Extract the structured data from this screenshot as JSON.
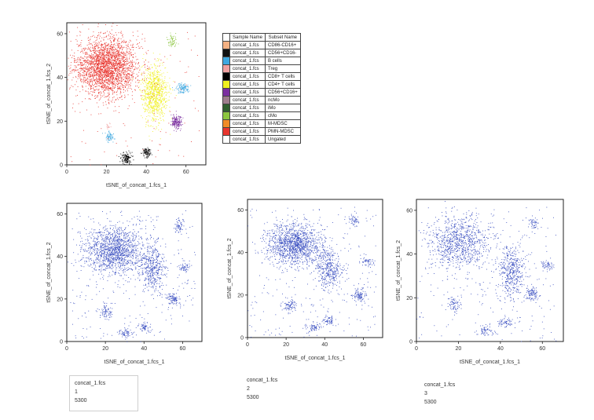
{
  "legend": {
    "headers": [
      "",
      "Sample Name",
      "Subset Name"
    ],
    "rows": [
      {
        "color": "#f4b183",
        "sample": "concat_1.fcs",
        "subset": "CD86-CD16+"
      },
      {
        "color": "#111111",
        "sample": "concat_1.fcs",
        "subset": "CD56+CD16-"
      },
      {
        "color": "#3fa8e0",
        "sample": "concat_1.fcs",
        "subset": "B cells"
      },
      {
        "color": "#f0a0a0",
        "sample": "concat_1.fcs",
        "subset": "Treg"
      },
      {
        "color": "#000000",
        "sample": "concat_1.fcs",
        "subset": "CD8+ T cells"
      },
      {
        "color": "#f0f020",
        "sample": "concat_1.fcs",
        "subset": "CD4+ T cells"
      },
      {
        "color": "#7b2fa0",
        "sample": "concat_1.fcs",
        "subset": "CD56+CD16+"
      },
      {
        "color": "#9e7e8e",
        "sample": "concat_1.fcs",
        "subset": "ncMo"
      },
      {
        "color": "#2f5f2f",
        "sample": "concat_1.fcs",
        "subset": "iMo"
      },
      {
        "color": "#8cc63f",
        "sample": "concat_1.fcs",
        "subset": "cMo"
      },
      {
        "color": "#f08c28",
        "sample": "concat_1.fcs",
        "subset": "M-MDSC"
      },
      {
        "color": "#e8352e",
        "sample": "concat_1.fcs",
        "subset": "PMN-MDSC"
      },
      {
        "color": "#ffffff",
        "sample": "concat_1.fcs",
        "subset": "Ungated"
      }
    ]
  },
  "info_boxes": [
    {
      "sample": "concat_1.fcs",
      "index": "1",
      "count": "5300"
    },
    {
      "sample": "concat_1.fcs",
      "index": "2",
      "count": "5300"
    },
    {
      "sample": "concat_1.fcs",
      "index": "3",
      "count": "5300"
    }
  ],
  "chart_data": [
    {
      "type": "scatter",
      "title": "",
      "xlabel": "tSNE_of_concat_1.fcs_1",
      "ylabel": "tSNE_of_concat_1.fcs_2",
      "xlim": [
        0,
        70
      ],
      "ylim": [
        0,
        65
      ],
      "xticks": [
        0,
        20,
        40,
        60
      ],
      "yticks": [
        0,
        20,
        40,
        60
      ],
      "grid": false,
      "series": [
        {
          "name": "PMN-MDSC",
          "color": "#e8352e",
          "cx": 20,
          "cy": 45,
          "rx": 14,
          "ry": 12,
          "n": 2600
        },
        {
          "name": "CD4+ T cells",
          "color": "#f0f020",
          "cx": 44,
          "cy": 33,
          "rx": 6,
          "ry": 11,
          "n": 900
        },
        {
          "name": "cMo",
          "color": "#8cc63f",
          "cx": 53,
          "cy": 57,
          "rx": 2,
          "ry": 3,
          "n": 60
        },
        {
          "name": "B cells",
          "color": "#3fa8e0",
          "cx": 58,
          "cy": 35,
          "rx": 3,
          "ry": 2,
          "n": 120
        },
        {
          "name": "CD56+CD16+",
          "color": "#7b2fa0",
          "cx": 55,
          "cy": 20,
          "rx": 2.5,
          "ry": 3,
          "n": 180
        },
        {
          "name": "B cells",
          "color": "#3fa8e0",
          "cx": 21,
          "cy": 13,
          "rx": 2,
          "ry": 2,
          "n": 70
        },
        {
          "name": "Treg",
          "color": "#f0a0a0",
          "cx": 21,
          "cy": 18,
          "rx": 1,
          "ry": 1,
          "n": 15
        },
        {
          "name": "CD8+ T cells",
          "color": "#000000",
          "cx": 30,
          "cy": 3,
          "rx": 2.5,
          "ry": 2.5,
          "n": 140
        },
        {
          "name": "CD56+CD16-",
          "color": "#111111",
          "cx": 40,
          "cy": 6,
          "rx": 2,
          "ry": 2,
          "n": 110
        }
      ]
    },
    {
      "type": "scatter",
      "title": "",
      "xlabel": "tSNE_of_concat_1.fcs_1",
      "ylabel": "tSNE_of_concat_1.fcs_2",
      "xlim": [
        0,
        70
      ],
      "ylim": [
        0,
        65
      ],
      "xticks": [
        0,
        20,
        40,
        60
      ],
      "yticks": [
        0,
        20,
        40,
        60
      ],
      "grid": false,
      "series": [
        {
          "name": "1",
          "color": "#3a4fc0",
          "cx": 24,
          "cy": 43,
          "rx": 14,
          "ry": 10,
          "n": 1400
        },
        {
          "name": "1",
          "color": "#3a4fc0",
          "cx": 44,
          "cy": 35,
          "rx": 6,
          "ry": 10,
          "n": 450
        },
        {
          "name": "1",
          "color": "#3a4fc0",
          "cx": 58,
          "cy": 55,
          "rx": 2,
          "ry": 3,
          "n": 60
        },
        {
          "name": "1",
          "color": "#3a4fc0",
          "cx": 61,
          "cy": 35,
          "rx": 3,
          "ry": 2,
          "n": 50
        },
        {
          "name": "1",
          "color": "#3a4fc0",
          "cx": 55,
          "cy": 20,
          "rx": 3,
          "ry": 3,
          "n": 100
        },
        {
          "name": "1",
          "color": "#3a4fc0",
          "cx": 20,
          "cy": 14,
          "rx": 3,
          "ry": 3,
          "n": 80
        },
        {
          "name": "1",
          "color": "#3a4fc0",
          "cx": 30,
          "cy": 4,
          "rx": 3,
          "ry": 2,
          "n": 60
        },
        {
          "name": "1",
          "color": "#3a4fc0",
          "cx": 40,
          "cy": 7,
          "rx": 3,
          "ry": 2,
          "n": 60
        }
      ]
    },
    {
      "type": "scatter",
      "title": "",
      "xlabel": "tSNE_of_concat_1.fcs_1",
      "ylabel": "tSNE_of_concat_1.fcs_2",
      "xlim": [
        0,
        70
      ],
      "ylim": [
        0,
        65
      ],
      "xticks": [
        0,
        20,
        40,
        60
      ],
      "yticks": [
        0,
        20,
        40,
        60
      ],
      "grid": false,
      "series": [
        {
          "name": "2",
          "color": "#3a4fc0",
          "cx": 24,
          "cy": 44,
          "rx": 13,
          "ry": 9,
          "n": 1300
        },
        {
          "name": "2",
          "color": "#3a4fc0",
          "cx": 42,
          "cy": 32,
          "rx": 6,
          "ry": 9,
          "n": 400
        },
        {
          "name": "2",
          "color": "#3a4fc0",
          "cx": 55,
          "cy": 55,
          "rx": 2,
          "ry": 3,
          "n": 50
        },
        {
          "name": "2",
          "color": "#3a4fc0",
          "cx": 62,
          "cy": 36,
          "rx": 3,
          "ry": 2,
          "n": 50
        },
        {
          "name": "2",
          "color": "#3a4fc0",
          "cx": 58,
          "cy": 20,
          "rx": 3,
          "ry": 3,
          "n": 100
        },
        {
          "name": "2",
          "color": "#3a4fc0",
          "cx": 22,
          "cy": 15,
          "rx": 3,
          "ry": 3,
          "n": 80
        },
        {
          "name": "2",
          "color": "#3a4fc0",
          "cx": 34,
          "cy": 5,
          "rx": 3,
          "ry": 2,
          "n": 60
        },
        {
          "name": "2",
          "color": "#3a4fc0",
          "cx": 42,
          "cy": 8,
          "rx": 3,
          "ry": 2,
          "n": 60
        }
      ]
    },
    {
      "type": "scatter",
      "title": "",
      "xlabel": "tSNE_of_concat_1.fcs_1",
      "ylabel": "tSNE_of_concat_1.fcs_2",
      "xlim": [
        0,
        70
      ],
      "ylim": [
        0,
        65
      ],
      "xticks": [
        0,
        20,
        40,
        60
      ],
      "yticks": [
        0,
        20,
        40,
        60
      ],
      "grid": false,
      "series": [
        {
          "name": "3",
          "color": "#3a4fc0",
          "cx": 20,
          "cy": 45,
          "rx": 13,
          "ry": 11,
          "n": 900
        },
        {
          "name": "3",
          "color": "#3a4fc0",
          "cx": 45,
          "cy": 32,
          "rx": 6,
          "ry": 11,
          "n": 450
        },
        {
          "name": "3",
          "color": "#3a4fc0",
          "cx": 56,
          "cy": 54,
          "rx": 2,
          "ry": 3,
          "n": 50
        },
        {
          "name": "3",
          "color": "#3a4fc0",
          "cx": 62,
          "cy": 35,
          "rx": 3,
          "ry": 2,
          "n": 60
        },
        {
          "name": "3",
          "color": "#3a4fc0",
          "cx": 55,
          "cy": 22,
          "rx": 3,
          "ry": 3,
          "n": 100
        },
        {
          "name": "3",
          "color": "#3a4fc0",
          "cx": 18,
          "cy": 17,
          "rx": 3,
          "ry": 3,
          "n": 70
        },
        {
          "name": "3",
          "color": "#3a4fc0",
          "cx": 33,
          "cy": 5,
          "rx": 3,
          "ry": 2,
          "n": 60
        },
        {
          "name": "3",
          "color": "#3a4fc0",
          "cx": 42,
          "cy": 9,
          "rx": 3,
          "ry": 2,
          "n": 60
        }
      ]
    }
  ]
}
